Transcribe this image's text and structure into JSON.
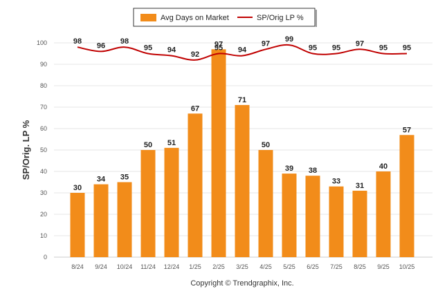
{
  "chart_data": {
    "type": "bar",
    "categories": [
      "8/24",
      "9/24",
      "10/24",
      "11/24",
      "12/24",
      "1/25",
      "2/25",
      "3/25",
      "4/25",
      "5/25",
      "6/25",
      "7/25",
      "8/25",
      "9/25",
      "10/25"
    ],
    "series": [
      {
        "name": "Avg Days on Market",
        "type": "bar",
        "color": "#f28c1a",
        "values": [
          30,
          34,
          35,
          50,
          51,
          67,
          97,
          71,
          50,
          39,
          38,
          33,
          31,
          40,
          57
        ]
      },
      {
        "name": "SP/Orig LP %",
        "type": "line",
        "color": "#c00000",
        "values": [
          98,
          96,
          98,
          95,
          94,
          92,
          95,
          94,
          97,
          99,
          95,
          95,
          97,
          95,
          95
        ]
      }
    ],
    "ylabel": "SP/Orig. LP %",
    "ylim": [
      0,
      100
    ],
    "yticks": [
      0,
      10,
      20,
      30,
      40,
      50,
      60,
      70,
      80,
      90,
      100
    ],
    "grid": true,
    "legend_position": "top-center"
  },
  "legend": {
    "bar_label": "Avg Days on Market",
    "line_label": "SP/Orig LP %"
  },
  "footer": {
    "copyright": "Copyright © Trendgraphix, Inc."
  }
}
